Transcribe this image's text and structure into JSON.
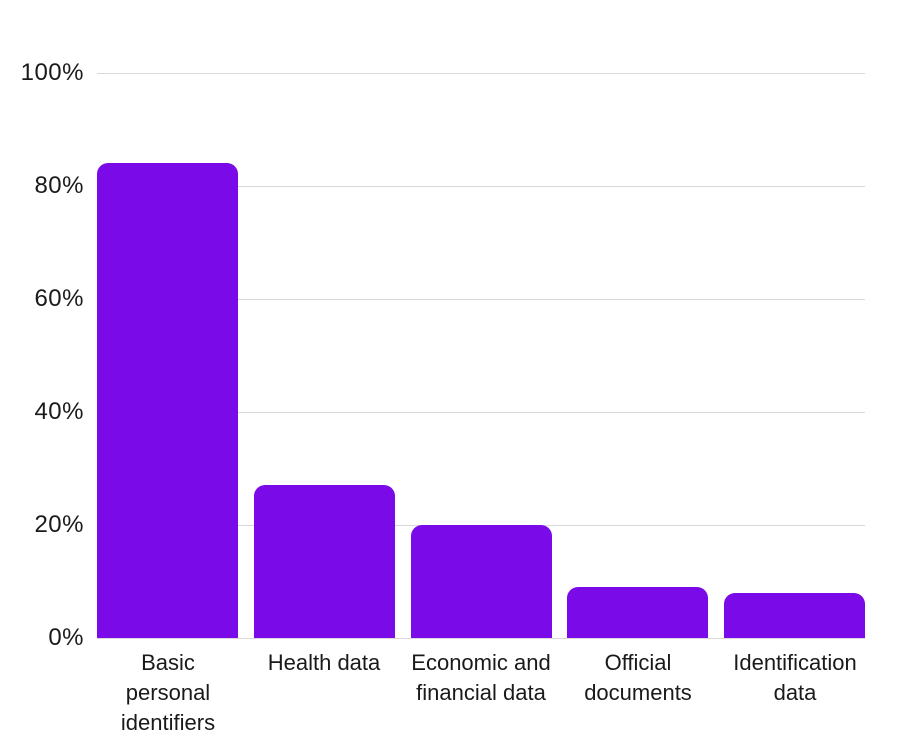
{
  "chart_data": {
    "type": "bar",
    "categories": [
      "Basic personal identifiers",
      "Health data",
      "Economic and financial data",
      "Official documents",
      "Identification data"
    ],
    "category_label_lines": [
      [
        "Basic",
        "personal",
        "identifiers"
      ],
      [
        "Health data"
      ],
      [
        "Economic and",
        "financial data"
      ],
      [
        "Official",
        "documents"
      ],
      [
        "Identification",
        "data"
      ]
    ],
    "values": [
      84,
      27,
      20,
      9,
      8
    ],
    "value_unit": "%",
    "y_tick_labels": [
      "0%",
      "20%",
      "40%",
      "60%",
      "80%",
      "100%"
    ],
    "y_tick_values": [
      0,
      20,
      40,
      60,
      80,
      100
    ],
    "ylim": [
      0,
      100
    ],
    "grid": "horizontal",
    "legend": "none",
    "bar_color": "#7A0BE8",
    "gridline_color": "#D9D9D9",
    "text_color": "#1A1A1A"
  }
}
